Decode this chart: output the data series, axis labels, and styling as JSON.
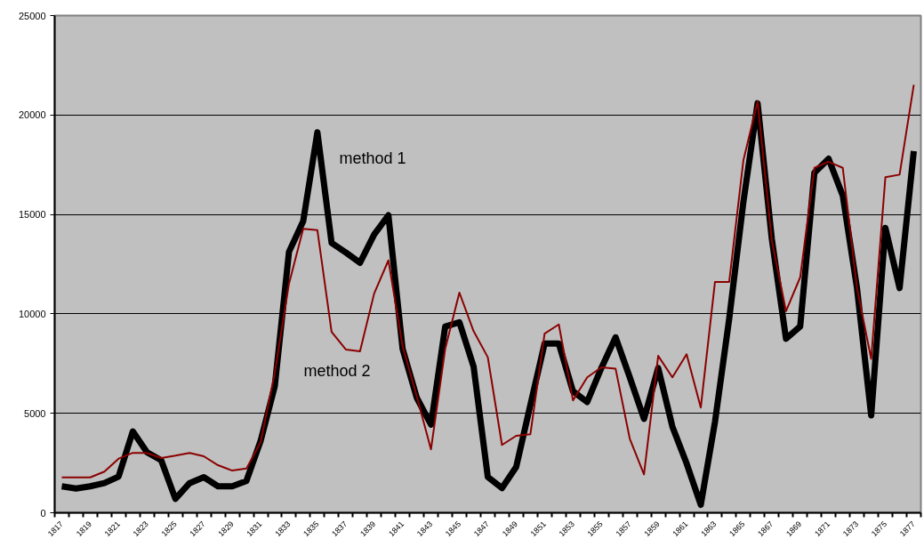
{
  "chart_data": {
    "type": "line",
    "categories": [
      "1817",
      null,
      "1819",
      null,
      "1821",
      null,
      "1823",
      null,
      "1825",
      null,
      "1827",
      null,
      "1829",
      null,
      "1831",
      null,
      "1833",
      null,
      "1835",
      null,
      "1837",
      null,
      "1839",
      null,
      "1841",
      null,
      "1843",
      null,
      "1845",
      null,
      "1847",
      null,
      "1849",
      null,
      "1851",
      null,
      "1853",
      null,
      "1855",
      null,
      "1857",
      null,
      "1859",
      null,
      "1861",
      null,
      "1863",
      null,
      "1865",
      null,
      "1867",
      null,
      "1869",
      null,
      "1871",
      null,
      "1873",
      null,
      "1875",
      null,
      "1877"
    ],
    "series": [
      {
        "color": "#000000",
        "values": [
          1330,
          1220,
          1330,
          1490,
          1820,
          4090,
          3040,
          2640,
          700,
          1490,
          1790,
          1330,
          1330,
          1600,
          3610,
          6370,
          13120,
          14660,
          19130,
          13570,
          13090,
          12570,
          13990,
          14960,
          8240,
          5780,
          4430,
          9360,
          9580,
          7350,
          1800,
          1240,
          2300,
          5420,
          8510,
          8510,
          6110,
          5570,
          7280,
          8820,
          6810,
          4720,
          7280,
          4330,
          2480,
          400,
          4570,
          9750,
          15630,
          20590,
          13780,
          8750,
          9370,
          17100,
          17800,
          15940,
          11300,
          4900,
          14320,
          11300,
          18190
        ]
      },
      {
        "color": "#8b0000",
        "values": [
          1780,
          1780,
          1780,
          2070,
          2720,
          3010,
          3010,
          2750,
          2870,
          3010,
          2840,
          2390,
          2120,
          2220,
          3540,
          7040,
          11520,
          14280,
          14210,
          9100,
          8210,
          8120,
          11030,
          12690,
          8390,
          5850,
          3190,
          8240,
          11070,
          9130,
          7820,
          3410,
          3870,
          3950,
          9010,
          9470,
          5650,
          6810,
          7310,
          7240,
          3720,
          1930,
          7890,
          6810,
          7970,
          5290,
          11610,
          11610,
          17720,
          20670,
          13700,
          10140,
          11840,
          17340,
          17650,
          17340,
          11300,
          7740,
          16870,
          17000,
          21520
        ]
      }
    ],
    "ylim": [
      0,
      25000
    ],
    "yticks": [
      0,
      5000,
      10000,
      15000,
      20000,
      25000
    ],
    "grid": "y",
    "annotations": [
      "method 1",
      "method 2"
    ]
  }
}
